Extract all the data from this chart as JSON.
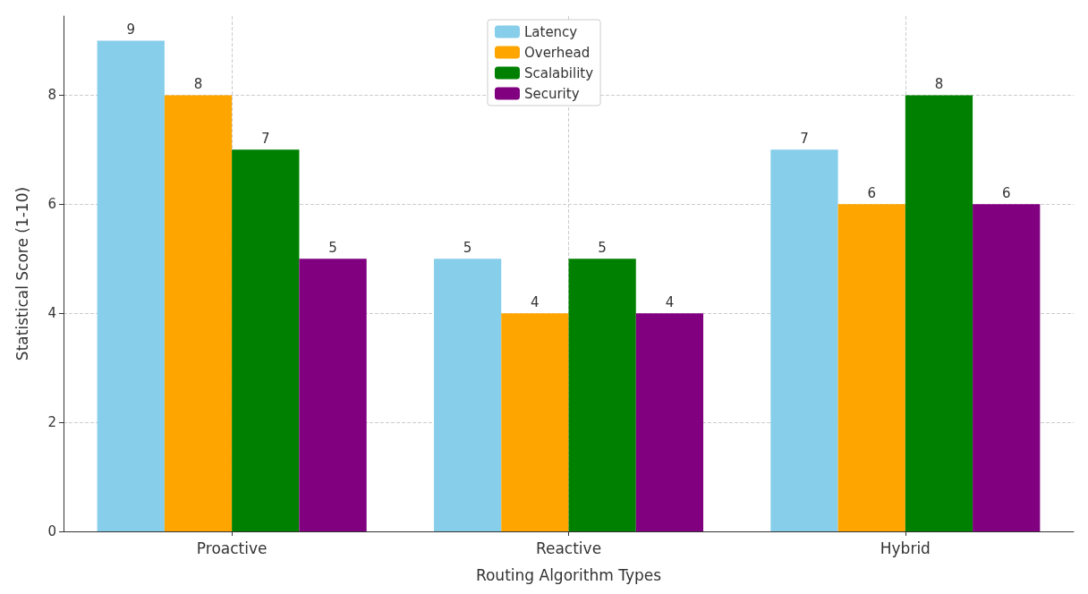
{
  "chart_data": {
    "type": "bar",
    "xlabel": "Routing Algorithm Types",
    "ylabel": "Statistical Score (1-10)",
    "categories": [
      "Proactive",
      "Reactive",
      "Hybrid"
    ],
    "series": [
      {
        "name": "Latency",
        "color": "#87ceeb",
        "values": [
          9,
          5,
          7
        ]
      },
      {
        "name": "Overhead",
        "color": "#ffa500",
        "values": [
          8,
          4,
          6
        ]
      },
      {
        "name": "Scalability",
        "color": "#008000",
        "values": [
          7,
          5,
          8
        ]
      },
      {
        "name": "Security",
        "color": "#800080",
        "values": [
          5,
          4,
          6
        ]
      }
    ],
    "ylim": [
      0,
      9.45
    ],
    "yticks": [
      0,
      2,
      4,
      6,
      8
    ],
    "grid": true,
    "legend": "top",
    "data_labels": true
  }
}
